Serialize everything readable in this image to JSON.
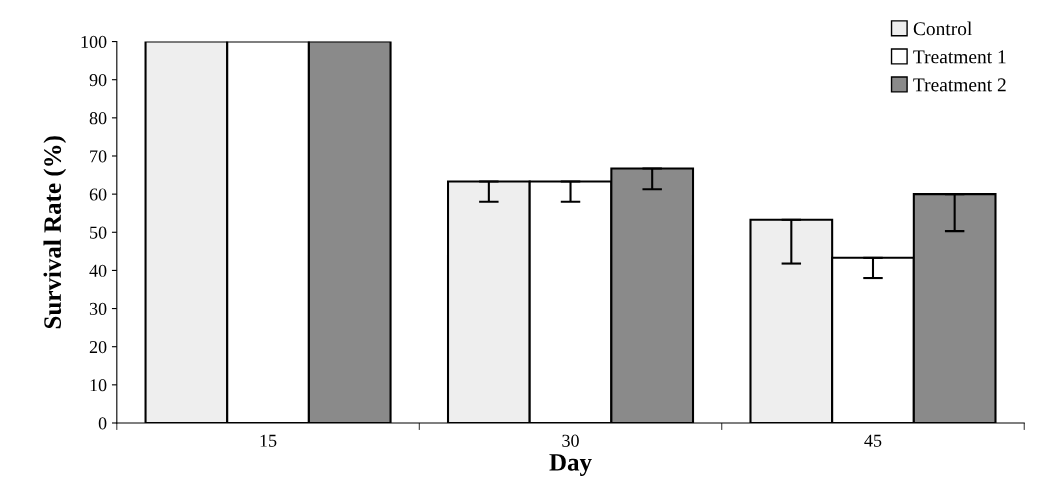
{
  "chart_data": {
    "type": "bar",
    "xlabel": "Day",
    "ylabel": "Survival Rate (%)",
    "categories": [
      "15",
      "30",
      "45"
    ],
    "series": [
      {
        "name": "Control",
        "color": "#eeeeee",
        "values": [
          100,
          63.3,
          53.3
        ],
        "errors": [
          null,
          [
            58,
            63.3
          ],
          [
            41.8,
            53.3
          ]
        ]
      },
      {
        "name": "Treatment 1",
        "color": "#ffffff",
        "values": [
          100,
          63.3,
          43.3
        ],
        "errors": [
          null,
          [
            58,
            63.3
          ],
          [
            38,
            43.3
          ]
        ]
      },
      {
        "name": "Treatment 2",
        "color": "#8a8a8a",
        "values": [
          100,
          66.7,
          60
        ],
        "errors": [
          null,
          [
            61.3,
            66.7
          ],
          [
            50.3,
            60
          ]
        ]
      }
    ],
    "ylim": [
      0,
      100
    ],
    "yticks": [
      0,
      10,
      20,
      30,
      40,
      50,
      60,
      70,
      80,
      90,
      100
    ],
    "grid": false,
    "legend": "top right"
  }
}
